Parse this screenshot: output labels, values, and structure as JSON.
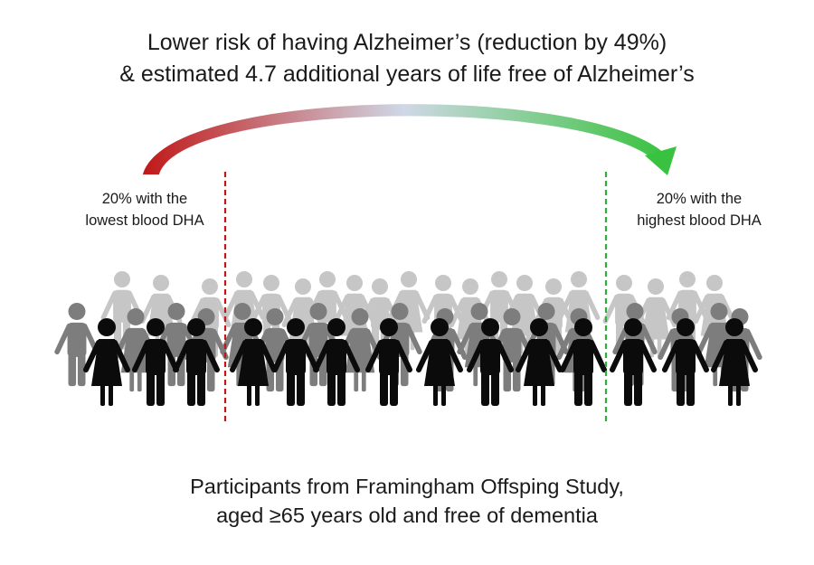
{
  "title": {
    "line1": "Lower risk of having Alzheimer’s (reduction by 49%)",
    "line2": "& estimated 4.7 additional years of life free of Alzheimer’s"
  },
  "groups": {
    "low": {
      "line1": "20% with the",
      "line2": "lowest blood DHA",
      "color": "#c01818"
    },
    "high": {
      "line1": "20% with the",
      "line2": "highest blood DHA",
      "color": "#2eae3a"
    }
  },
  "caption": {
    "line1": "Participants from Framingham Offsping Study,",
    "line2": "aged ≥65 years old and free of dementia"
  },
  "colors": {
    "front_row": "#0b0b0b",
    "middle_row": "#7d7d7d",
    "back_row": "#c6c6c6",
    "arrow_start": "#c01818",
    "arrow_middle": "#cfd8e6",
    "arrow_end": "#39c23f"
  }
}
